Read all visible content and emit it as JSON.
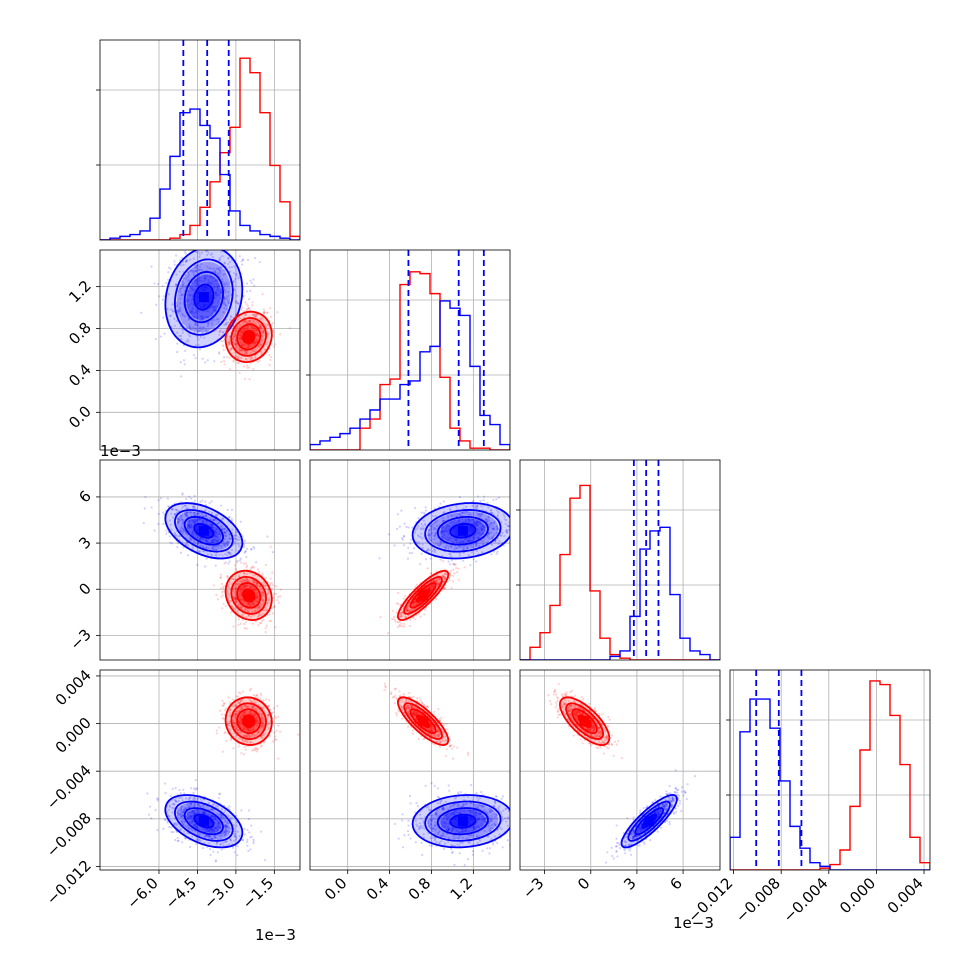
{
  "chart_data": {
    "type": "corner",
    "grid": true,
    "colors": {
      "blue": "#0000ff",
      "red": "#ff0000"
    },
    "parameter_ranges": [
      [
        -0.0083,
        -0.0005
      ],
      [
        -0.00036,
        0.00155
      ],
      [
        -0.0046,
        0.0084
      ],
      [
        -0.0123,
        0.0045
      ]
    ],
    "scale_labels": [
      {
        "text": "1e−3",
        "under": "x0"
      },
      {
        "text": "1e−3",
        "under": "y1"
      },
      {
        "text": "1e−3",
        "under": "x2"
      }
    ],
    "x_ticks": [
      {
        "values": [
          -6.0,
          -4.5,
          -3.0,
          -1.5
        ],
        "labels": [
          "−6.0",
          "−4.5",
          "−3.0",
          "−1.5"
        ],
        "scale": 0.001
      },
      {
        "values": [
          0.0,
          0.4,
          0.8,
          1.2
        ],
        "labels": [
          "0.0",
          "0.4",
          "0.8",
          "1.2"
        ],
        "scale": 0.001
      },
      {
        "values": [
          -3,
          0,
          3,
          6
        ],
        "labels": [
          "−3",
          "0",
          "3",
          "6"
        ],
        "scale": 0.001
      },
      {
        "values": [
          -0.012,
          -0.008,
          -0.004,
          0.0,
          0.004
        ],
        "labels": [
          "−0.012",
          "−0.008",
          "−0.004",
          "0.000",
          "0.004"
        ],
        "scale": 1
      }
    ],
    "y_ticks": [
      null,
      {
        "values": [
          0.0,
          0.4,
          0.8,
          1.2
        ],
        "labels": [
          "0.0",
          "0.4",
          "0.8",
          "1.2"
        ],
        "scale": 0.001
      },
      {
        "values": [
          -3,
          0,
          3,
          6
        ],
        "labels": [
          "−3",
          "0",
          "3",
          "6"
        ],
        "scale": 0.001
      },
      {
        "values": [
          -0.012,
          -0.008,
          -0.004,
          0.0,
          0.004
        ],
        "labels": [
          "−0.012",
          "−0.008",
          "−0.004",
          "0.000",
          "0.004"
        ],
        "scale": 1
      }
    ],
    "diag_ylim": 1.1,
    "histograms": [
      {
        "edges": [
          -0.0083,
          -0.0005
        ],
        "blue": [
          0.0,
          0.01,
          0.02,
          0.03,
          0.05,
          0.12,
          0.28,
          0.46,
          0.7,
          0.72,
          0.63,
          0.56,
          0.36,
          0.16,
          0.08,
          0.05,
          0.03,
          0.02,
          0.01,
          0.0
        ],
        "red": [
          0.0,
          0.0,
          0.0,
          0.0,
          0.0,
          0.0,
          0.0,
          0.01,
          0.03,
          0.08,
          0.18,
          0.32,
          0.48,
          0.62,
          1.0,
          0.92,
          0.7,
          0.41,
          0.21,
          0.02
        ],
        "quantiles": [
          -0.00505,
          -0.00412,
          -0.00328
        ]
      },
      {
        "edges": [
          -0.00036,
          0.00155
        ],
        "blue": [
          0.03,
          0.05,
          0.07,
          0.09,
          0.12,
          0.17,
          0.22,
          0.28,
          0.28,
          0.36,
          0.38,
          0.54,
          0.57,
          0.82,
          0.78,
          0.74,
          0.46,
          0.19,
          0.14,
          0.03
        ],
        "red": [
          0.0,
          0.0,
          0.0,
          0.0,
          0.0,
          0.12,
          0.17,
          0.36,
          0.39,
          0.91,
          0.98,
          0.97,
          0.86,
          0.4,
          0.12,
          0.05,
          0.01,
          0.01,
          0.0,
          0.0
        ],
        "quantiles": [
          0.00058,
          0.00106,
          0.0013
        ]
      },
      {
        "edges": [
          -0.0046,
          0.0084
        ],
        "blue": [
          0.0,
          0.0,
          0.0,
          0.0,
          0.0,
          0.0,
          0.0,
          0.0,
          0.0,
          0.02,
          0.05,
          0.24,
          0.61,
          0.71,
          0.73,
          0.36,
          0.12,
          0.05,
          0.03,
          0.0
        ],
        "red": [
          0.0,
          0.07,
          0.15,
          0.3,
          0.58,
          0.89,
          0.96,
          0.38,
          0.12,
          0.03,
          0.01,
          0.0,
          0.0,
          0.0,
          0.0,
          0.0,
          0.0,
          0.0,
          0.0,
          0.0
        ],
        "quantiles": [
          0.0028,
          0.0036,
          0.0044
        ]
      },
      {
        "edges": [
          -0.0123,
          0.0045
        ],
        "blue": [
          0.18,
          0.76,
          0.94,
          0.94,
          0.78,
          0.49,
          0.24,
          0.12,
          0.04,
          0.02,
          0.0,
          0.0,
          0.0,
          0.0,
          0.0,
          0.0,
          0.0,
          0.0,
          0.0,
          0.0
        ],
        "red": [
          0.0,
          0.0,
          0.0,
          0.0,
          0.0,
          0.0,
          0.0,
          0.0,
          0.0,
          0.01,
          0.03,
          0.11,
          0.35,
          0.66,
          1.04,
          1.02,
          0.85,
          0.58,
          0.18,
          0.04
        ],
        "quantiles": [
          -0.0101,
          -0.0082,
          -0.0063
        ]
      }
    ],
    "clusters": {
      "blue": {
        "mean": [
          -0.00425,
          0.0011,
          0.0038,
          -0.0082
        ],
        "sd": [
          0.00075,
          0.00024,
          0.0009,
          0.0011
        ]
      },
      "red": {
        "mean": [
          -0.0025,
          0.00072,
          -0.0004,
          0.0002
        ],
        "sd": [
          0.00045,
          0.00012,
          0.0008,
          0.001
        ]
      }
    },
    "scatter_panels": [
      {
        "x": 0,
        "y": 1,
        "corr": {
          "blue": 0.15,
          "red": 0.1
        }
      },
      {
        "x": 0,
        "y": 2,
        "corr": {
          "blue": -0.45,
          "red": -0.15
        }
      },
      {
        "x": 1,
        "y": 2,
        "corr": {
          "blue": 0.15,
          "red": 0.85
        }
      },
      {
        "x": 0,
        "y": 3,
        "corr": {
          "blue": -0.45,
          "red": -0.05
        }
      },
      {
        "x": 1,
        "y": 3,
        "corr": {
          "blue": 0.1,
          "red": -0.8
        }
      },
      {
        "x": 2,
        "y": 3,
        "corr": {
          "blue": 0.85,
          "red": -0.7
        }
      }
    ]
  }
}
